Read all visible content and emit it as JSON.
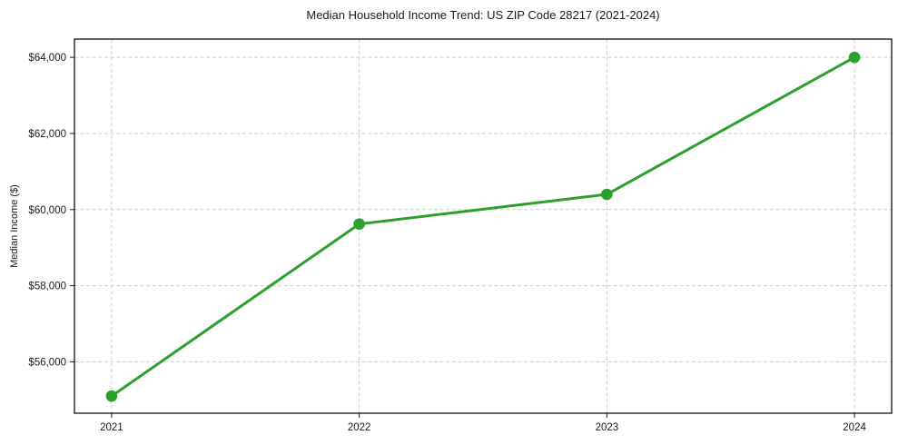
{
  "chart_data": {
    "type": "line",
    "title": "Median Household Income Trend: US ZIP Code 28217 (2021-2024)",
    "xlabel": "",
    "ylabel": "Median Income ($)",
    "x": [
      2021,
      2022,
      2023,
      2024
    ],
    "series": [
      {
        "name": "Median Household Income",
        "values": [
          55100,
          59620,
          60400,
          64000
        ],
        "color": "#2ca02c"
      }
    ],
    "x_ticks": [
      {
        "value": 2021,
        "label": "2021"
      },
      {
        "value": 2022,
        "label": "2022"
      },
      {
        "value": 2023,
        "label": "2023"
      },
      {
        "value": 2024,
        "label": "2024"
      }
    ],
    "y_ticks": [
      {
        "value": 56000,
        "label": "$56,000"
      },
      {
        "value": 58000,
        "label": "$58,000"
      },
      {
        "value": 60000,
        "label": "$60,000"
      },
      {
        "value": 62000,
        "label": "$62,000"
      },
      {
        "value": 64000,
        "label": "$64,000"
      }
    ],
    "xlim": [
      2020.85,
      2024.15
    ],
    "ylim": [
      54650,
      64480
    ],
    "grid": "dashed",
    "grid_color": "#cccccc",
    "line_color": "#2ca02c",
    "legend": "none",
    "background": "#ffffff"
  }
}
